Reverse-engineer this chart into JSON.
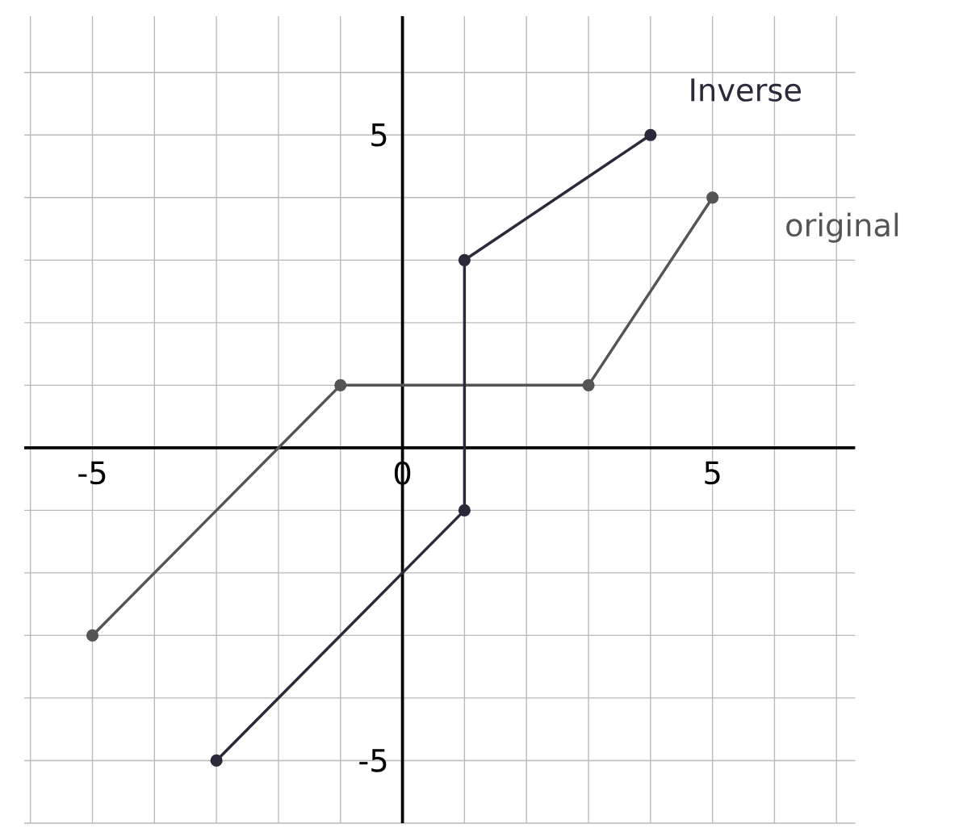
{
  "chart_data": {
    "type": "line",
    "marker": "circle",
    "grid": true,
    "xlim": [
      -6.1,
      7.3
    ],
    "ylim": [
      -6,
      6.9
    ],
    "xticks": [
      {
        "value": -6,
        "label": null
      },
      -5,
      {
        "value": -4,
        "label": null
      },
      {
        "value": -3,
        "label": null
      },
      {
        "value": -2,
        "label": null
      },
      {
        "value": -1,
        "label": null
      },
      0,
      {
        "value": 1,
        "label": null
      },
      {
        "value": 2,
        "label": null
      },
      {
        "value": 3,
        "label": null
      },
      {
        "value": 4,
        "label": null
      },
      5,
      {
        "value": 6,
        "label": null
      },
      {
        "value": 7,
        "label": null
      }
    ],
    "yticks": [
      {
        "value": -6,
        "label": null
      },
      -5,
      {
        "value": -4,
        "label": null
      },
      {
        "value": -3,
        "label": null
      },
      {
        "value": -2,
        "label": null
      },
      {
        "value": -1,
        "label": null
      },
      {
        "value": 0,
        "label": null
      },
      {
        "value": 1,
        "label": null
      },
      {
        "value": 2,
        "label": null
      },
      {
        "value": 3,
        "label": null
      },
      {
        "value": 4,
        "label": null
      },
      5,
      {
        "value": 6,
        "label": null
      }
    ],
    "series": [
      {
        "name": "original",
        "color": "#555555",
        "x": [
          -5,
          -1,
          3,
          5
        ],
        "values": [
          -3,
          1,
          1,
          4
        ]
      },
      {
        "name": "Inverse",
        "color": "#2a2a3a",
        "x": [
          -3,
          1,
          1,
          4
        ],
        "values": [
          -5,
          -1,
          3,
          5
        ]
      }
    ]
  }
}
